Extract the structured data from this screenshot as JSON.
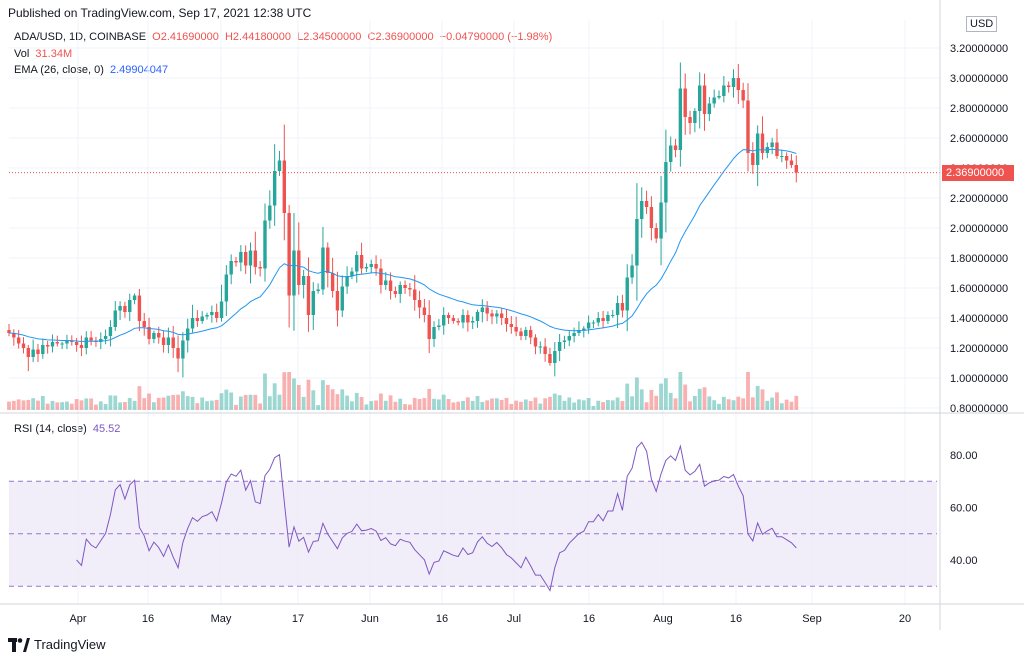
{
  "header": "Published on TradingView.com, Sep 17, 2021 12:38 UTC",
  "symbol": "ADA/USD, 1D, COINBASE",
  "ohlc": {
    "o": "O2.41690000",
    "h": "H2.44180000",
    "l": "L2.34500000",
    "c": "C2.36900000",
    "chg": "−0.04790000 (−1.98%)"
  },
  "vol": {
    "label": "Vol",
    "value": "31.34M"
  },
  "ema": {
    "label": "EMA (26, close, 0)",
    "value": "2.49904047"
  },
  "rsi": {
    "label": "RSI (14, close)",
    "value": "45.52"
  },
  "currency": "USD",
  "last_price": "2.36900000",
  "logo_text": "TradingView",
  "colors": {
    "up": "#26a69a",
    "down": "#ef5350",
    "ema": "#2196f3",
    "rsi": "#7e57c2",
    "rsi_band": "#ede7f6"
  },
  "chart_data": [
    {
      "type": "candlestick",
      "title": "ADA/USD, 1D, COINBASE",
      "y_ticks": [
        "3.20000000",
        "3.00000000",
        "2.80000000",
        "2.60000000",
        "2.40000000",
        "2.20000000",
        "2.00000000",
        "1.80000000",
        "1.60000000",
        "1.40000000",
        "1.20000000",
        "1.00000000",
        "0.80000000"
      ],
      "x_ticks": [
        "Apr",
        "16",
        "May",
        "17",
        "Jun",
        "16",
        "Jul",
        "16",
        "Aug",
        "16",
        "Sep",
        "20"
      ],
      "ylim": [
        0.8,
        3.2
      ],
      "close_series": [
        1.3,
        1.27,
        1.23,
        1.2,
        1.14,
        1.19,
        1.16,
        1.22,
        1.21,
        1.24,
        1.23,
        1.23,
        1.25,
        1.24,
        1.22,
        1.2,
        1.27,
        1.25,
        1.24,
        1.26,
        1.28,
        1.34,
        1.45,
        1.48,
        1.44,
        1.52,
        1.55,
        1.38,
        1.34,
        1.26,
        1.3,
        1.27,
        1.22,
        1.27,
        1.2,
        1.13,
        1.25,
        1.33,
        1.4,
        1.38,
        1.41,
        1.42,
        1.44,
        1.4,
        1.51,
        1.69,
        1.78,
        1.77,
        1.84,
        1.75,
        1.85,
        1.74,
        1.73,
        2.05,
        2.15,
        2.38,
        2.45,
        2.1,
        1.55,
        1.85,
        1.62,
        1.68,
        1.42,
        1.58,
        1.59,
        1.87,
        1.7,
        1.58,
        1.45,
        1.61,
        1.68,
        1.71,
        1.82,
        1.73,
        1.74,
        1.76,
        1.73,
        1.62,
        1.65,
        1.58,
        1.56,
        1.62,
        1.6,
        1.59,
        1.52,
        1.47,
        1.42,
        1.26,
        1.34,
        1.35,
        1.42,
        1.4,
        1.38,
        1.37,
        1.42,
        1.37,
        1.38,
        1.44,
        1.47,
        1.43,
        1.41,
        1.43,
        1.4,
        1.36,
        1.34,
        1.31,
        1.28,
        1.32,
        1.27,
        1.21,
        1.21,
        1.16,
        1.1,
        1.18,
        1.24,
        1.25,
        1.28,
        1.3,
        1.32,
        1.33,
        1.37,
        1.37,
        1.4,
        1.38,
        1.42,
        1.42,
        1.5,
        1.45,
        1.67,
        1.75,
        2.06,
        2.18,
        2.14,
        2.0,
        1.93,
        2.17,
        2.44,
        2.55,
        2.52,
        2.93,
        2.74,
        2.7,
        2.78,
        2.95,
        2.76,
        2.83,
        2.87,
        2.88,
        2.95,
        2.94,
        3.0,
        2.92,
        2.85,
        2.5,
        2.42,
        2.63,
        2.5,
        2.54,
        2.57,
        2.48,
        2.48,
        2.45,
        2.42,
        2.37
      ],
      "ema_last": 2.49904047
    },
    {
      "type": "line",
      "title": "RSI (14, close)",
      "y_ticks": [
        "80.00",
        "60.00",
        "40.00"
      ],
      "ylim": [
        26,
        92
      ],
      "bands": [
        70,
        50,
        30
      ],
      "last_value": 45.52
    }
  ]
}
